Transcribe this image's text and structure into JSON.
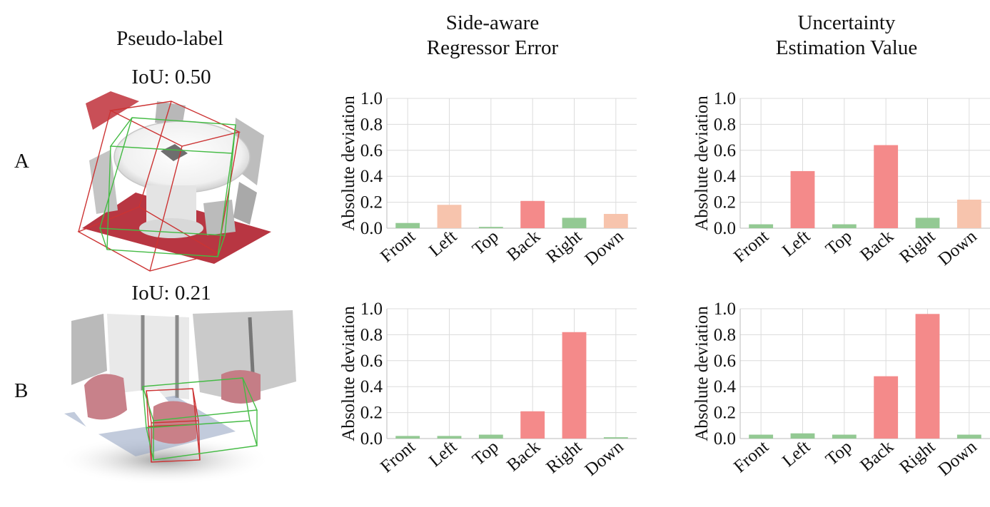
{
  "titles": {
    "col1": "Pseudo-label",
    "col2_line1": "Side-aware",
    "col2_line2": "Regressor Error",
    "col3_line1": "Uncertainty",
    "col3_line2": "Estimation Value"
  },
  "rows": [
    {
      "label": "A",
      "iou": "IoU: 0.50"
    },
    {
      "label": "B",
      "iou": "IoU: 0.21"
    }
  ],
  "colors": {
    "good": "#93c993",
    "mid": "#f7c4ad",
    "bad": "#f48a8a",
    "grid": "#dcdcdc",
    "box_red": "#cc3333",
    "box_green": "#44bb44"
  },
  "chart_data": [
    {
      "type": "bar",
      "id": "A-error",
      "categories": [
        "Front",
        "Left",
        "Top",
        "Back",
        "Right",
        "Down"
      ],
      "values": [
        0.04,
        0.18,
        0.01,
        0.21,
        0.08,
        0.11
      ],
      "colors": [
        "good",
        "mid",
        "good",
        "bad",
        "good",
        "mid"
      ],
      "ylabel": "Absolute deviation",
      "ylim": [
        0,
        1.0
      ],
      "yticks": [
        "0.0",
        "0.2",
        "0.4",
        "0.6",
        "0.8",
        "1.0"
      ],
      "grid": true
    },
    {
      "type": "bar",
      "id": "A-uncertainty",
      "categories": [
        "Front",
        "Left",
        "Top",
        "Back",
        "Right",
        "Down"
      ],
      "values": [
        0.03,
        0.44,
        0.03,
        0.64,
        0.08,
        0.22
      ],
      "colors": [
        "good",
        "bad",
        "good",
        "bad",
        "good",
        "mid"
      ],
      "ylabel": "Absolute deviation",
      "ylim": [
        0,
        1.0
      ],
      "yticks": [
        "0.0",
        "0.2",
        "0.4",
        "0.6",
        "0.8",
        "1.0"
      ],
      "grid": true
    },
    {
      "type": "bar",
      "id": "B-error",
      "categories": [
        "Front",
        "Left",
        "Top",
        "Back",
        "Right",
        "Down"
      ],
      "values": [
        0.02,
        0.02,
        0.03,
        0.21,
        0.82,
        0.01
      ],
      "colors": [
        "good",
        "good",
        "good",
        "bad",
        "bad",
        "good"
      ],
      "ylabel": "Absolute deviation",
      "ylim": [
        0,
        1.0
      ],
      "yticks": [
        "0.0",
        "0.2",
        "0.4",
        "0.6",
        "0.8",
        "1.0"
      ],
      "grid": true
    },
    {
      "type": "bar",
      "id": "B-uncertainty",
      "categories": [
        "Front",
        "Left",
        "Top",
        "Back",
        "Right",
        "Down"
      ],
      "values": [
        0.03,
        0.04,
        0.03,
        0.48,
        0.96,
        0.03
      ],
      "colors": [
        "good",
        "good",
        "good",
        "bad",
        "bad",
        "good"
      ],
      "ylabel": "Absolute deviation",
      "ylim": [
        0,
        1.0
      ],
      "yticks": [
        "0.0",
        "0.2",
        "0.4",
        "0.6",
        "0.8",
        "1.0"
      ],
      "grid": true
    }
  ]
}
